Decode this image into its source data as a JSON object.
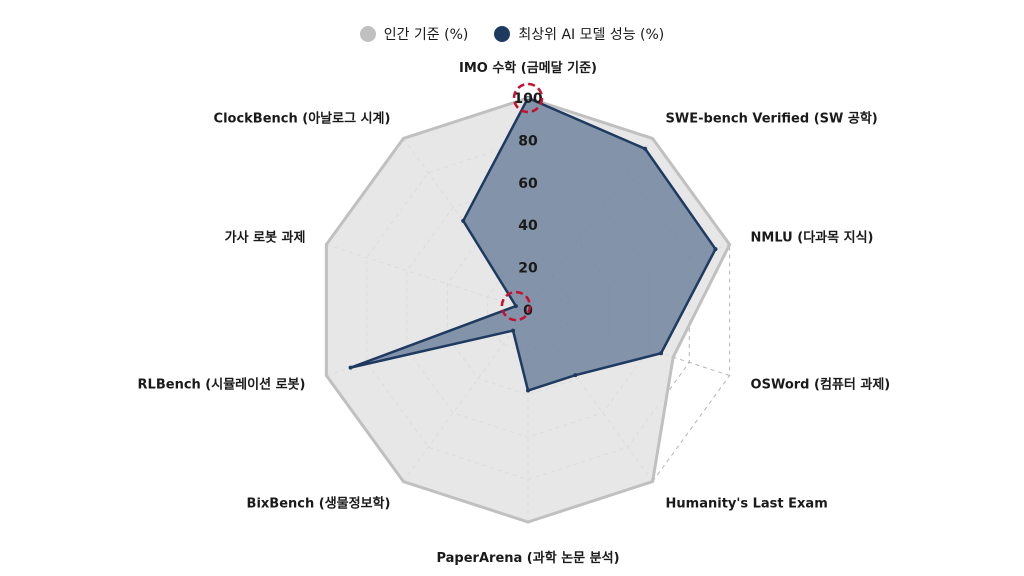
{
  "chart_data": {
    "type": "radar",
    "legend": {
      "placement": "top-center"
    },
    "categories": [
      "IMO 수학 (금메달 기준)",
      "SWE-bench Verified (SW 공학)",
      "NMLU (다과목 지식)",
      "OSWord (컴퓨터 과제)",
      "Humanity's Last Exam",
      "PaperArena (과학 논문 분석)",
      "BixBench (생물정보학)",
      "RLBench (시뮬레이션 로봇)",
      "가사 로봇 과제",
      "ClockBench (아날로그 시계)"
    ],
    "series": [
      {
        "name": "인간 기준 (%)",
        "color": "#c0c0c0",
        "fill": "#e3e3e3",
        "values": [
          100,
          100,
          100,
          72,
          100,
          100,
          100,
          100,
          100,
          100
        ]
      },
      {
        "name": "최상위 AI 모델 성능 (%)",
        "color": "#1f3a60",
        "fill": "#5b7393",
        "values": [
          100,
          94,
          93,
          66,
          38,
          38,
          12,
          88,
          6,
          52
        ]
      }
    ],
    "ticks": [
      "0",
      "20",
      "40",
      "60",
      "80",
      "100"
    ],
    "rlim": [
      0,
      100
    ],
    "grid": true,
    "highlights": [
      {
        "category_index": 0,
        "value": 100,
        "color": "#c8102e"
      },
      {
        "category_index": 8,
        "value": 6,
        "color": "#c8102e"
      }
    ]
  }
}
